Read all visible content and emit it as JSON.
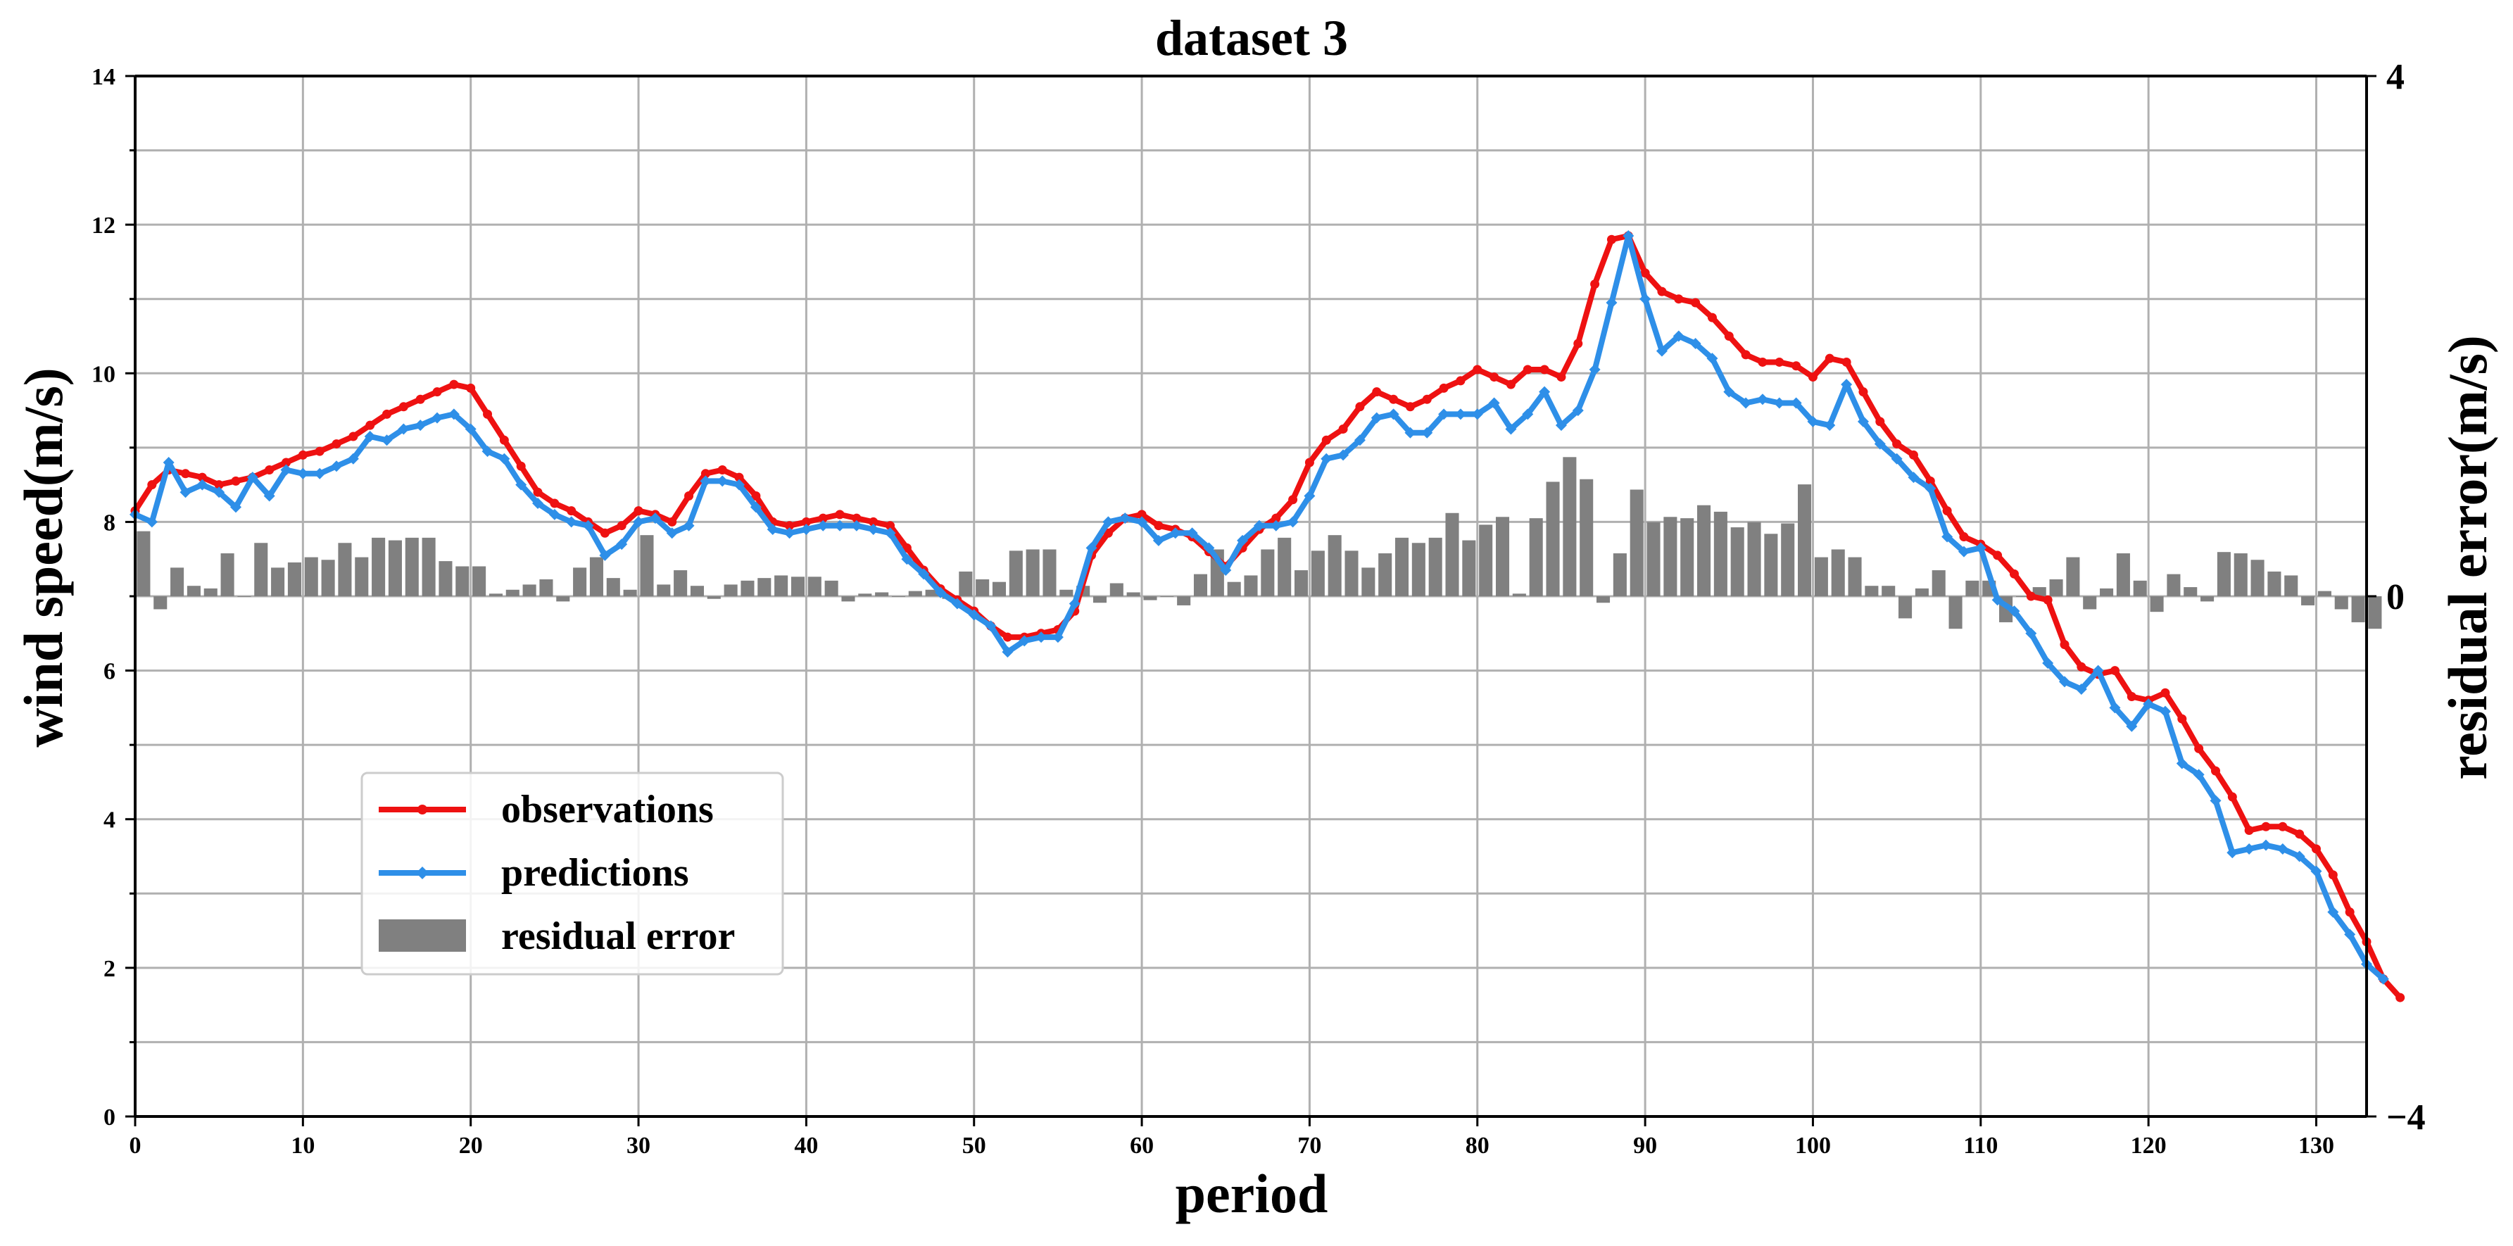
{
  "chart_data": {
    "type": "line",
    "title": "dataset 3",
    "xlabel": "period",
    "ylabel": "wind speed(m/s)",
    "ylabel_right": "residual error(m/s)",
    "xlim": [
      0,
      133
    ],
    "ylim": [
      0,
      14
    ],
    "ylim_right": [
      -4,
      4
    ],
    "x_ticks": [
      0,
      10,
      20,
      30,
      40,
      50,
      60,
      70,
      80,
      90,
      100,
      110,
      120,
      130
    ],
    "y_ticks": [
      0,
      2,
      4,
      6,
      8,
      10,
      12,
      14
    ],
    "y_ticks_right": [
      -4,
      0,
      4
    ],
    "grid": true,
    "legend_position": "lower-left",
    "series": [
      {
        "name": "observations",
        "kind": "line",
        "color": "#ee1111",
        "marker": "circle",
        "values": [
          8.15,
          8.5,
          8.7,
          8.65,
          8.6,
          8.5,
          8.55,
          8.6,
          8.7,
          8.8,
          8.9,
          8.95,
          9.05,
          9.15,
          9.3,
          9.45,
          9.55,
          9.65,
          9.75,
          9.85,
          9.8,
          9.45,
          9.1,
          8.75,
          8.4,
          8.25,
          8.15,
          8.0,
          7.85,
          7.95,
          8.15,
          8.1,
          8.0,
          8.35,
          8.65,
          8.7,
          8.6,
          8.35,
          8.0,
          7.95,
          8.0,
          8.05,
          8.1,
          8.05,
          8.0,
          7.95,
          7.65,
          7.35,
          7.1,
          6.95,
          6.8,
          6.6,
          6.45,
          6.45,
          6.5,
          6.55,
          6.8,
          7.55,
          7.85,
          8.05,
          8.1,
          7.95,
          7.9,
          7.8,
          7.6,
          7.4,
          7.65,
          7.9,
          8.05,
          8.3,
          8.8,
          9.1,
          9.25,
          9.55,
          9.75,
          9.65,
          9.55,
          9.65,
          9.8,
          9.9,
          10.05,
          9.95,
          9.85,
          10.05,
          10.05,
          9.95,
          10.4,
          11.2,
          11.8,
          11.85,
          11.35,
          11.1,
          11.0,
          10.95,
          10.75,
          10.5,
          10.25,
          10.15,
          10.15,
          10.1,
          9.95,
          10.2,
          10.15,
          9.75,
          9.35,
          9.05,
          8.9,
          8.55,
          8.15,
          7.8,
          7.7,
          7.55,
          7.3,
          7.0,
          6.95,
          6.35,
          6.05,
          5.95,
          6.0,
          5.65,
          5.6,
          5.7,
          5.35,
          4.95,
          4.65,
          4.3,
          3.85,
          3.9,
          3.9,
          3.8,
          3.6,
          3.25,
          2.75,
          2.35,
          1.85,
          1.6
        ]
      },
      {
        "name": "predictions",
        "kind": "line",
        "color": "#2e8fe8",
        "marker": "diamond",
        "values": [
          8.1,
          8.0,
          8.8,
          8.4,
          8.5,
          8.4,
          8.2,
          8.6,
          8.35,
          8.7,
          8.65,
          8.65,
          8.75,
          8.85,
          9.15,
          9.1,
          9.25,
          9.3,
          9.4,
          9.45,
          9.25,
          8.95,
          8.85,
          8.5,
          8.25,
          8.1,
          8.0,
          7.95,
          7.55,
          7.7,
          8.0,
          8.05,
          7.85,
          7.95,
          8.55,
          8.55,
          8.5,
          8.2,
          7.9,
          7.85,
          7.9,
          7.95,
          7.95,
          7.95,
          7.9,
          7.85,
          7.5,
          7.3,
          7.05,
          6.9,
          6.75,
          6.6,
          6.25,
          6.4,
          6.45,
          6.45,
          6.9,
          7.65,
          8.0,
          8.05,
          8.0,
          7.75,
          7.85,
          7.85,
          7.65,
          7.35,
          7.75,
          7.95,
          7.95,
          8.0,
          8.35,
          8.85,
          8.9,
          9.1,
          9.4,
          9.45,
          9.2,
          9.2,
          9.45,
          9.45,
          9.45,
          9.6,
          9.25,
          9.45,
          9.75,
          9.3,
          9.5,
          10.05,
          10.95,
          11.85,
          11.0,
          10.3,
          10.5,
          10.4,
          10.2,
          9.75,
          9.6,
          9.65,
          9.6,
          9.6,
          9.35,
          9.3,
          9.85,
          9.35,
          9.05,
          8.85,
          8.6,
          8.45,
          7.8,
          7.6,
          7.65,
          6.95,
          6.8,
          6.5,
          6.1,
          5.85,
          5.75,
          6.0,
          5.5,
          5.25,
          5.55,
          5.45,
          4.75,
          4.6,
          4.25,
          3.55,
          3.6,
          3.65,
          3.6,
          3.5,
          3.3,
          2.75,
          2.45,
          2.05,
          1.85
        ]
      },
      {
        "name": "residual error",
        "kind": "bar",
        "axis": "right",
        "color": "#808080",
        "values": [
          0.5,
          -0.1,
          0.22,
          0.08,
          0.06,
          0.33,
          0.0,
          0.41,
          0.22,
          0.26,
          0.3,
          0.28,
          0.41,
          0.3,
          0.45,
          0.43,
          0.45,
          0.45,
          0.27,
          0.23,
          0.23,
          0.02,
          0.05,
          0.09,
          0.13,
          -0.04,
          0.22,
          0.3,
          0.14,
          0.05,
          0.47,
          0.09,
          0.2,
          0.08,
          -0.02,
          0.09,
          0.12,
          0.14,
          0.16,
          0.15,
          0.15,
          0.12,
          -0.04,
          0.02,
          0.03,
          0.0,
          0.04,
          0.05,
          -0.02,
          0.19,
          0.13,
          0.11,
          0.35,
          0.36,
          0.36,
          0.05,
          0.08,
          -0.05,
          0.1,
          0.03,
          -0.03,
          0.0,
          -0.07,
          0.17,
          0.36,
          0.11,
          0.16,
          0.36,
          0.45,
          0.2,
          0.35,
          0.47,
          0.35,
          0.22,
          0.33,
          0.45,
          0.41,
          0.45,
          0.64,
          0.43,
          0.55,
          0.61,
          0.02,
          0.6,
          0.88,
          1.07,
          0.9,
          -0.05,
          0.33,
          0.82,
          0.57,
          0.61,
          0.6,
          0.7,
          0.65,
          0.53,
          0.57,
          0.48,
          0.56,
          0.86,
          0.3,
          0.36,
          0.3,
          0.08,
          0.08,
          -0.17,
          0.06,
          0.2,
          -0.25,
          0.12,
          0.12,
          -0.2,
          0.0,
          0.07,
          0.13,
          0.3,
          -0.1,
          0.06,
          0.33,
          0.12,
          -0.12,
          0.17,
          0.07,
          -0.04,
          0.34,
          0.33,
          0.28,
          0.19,
          0.16,
          -0.07,
          0.04,
          -0.1,
          -0.2,
          -0.25
        ]
      }
    ]
  }
}
